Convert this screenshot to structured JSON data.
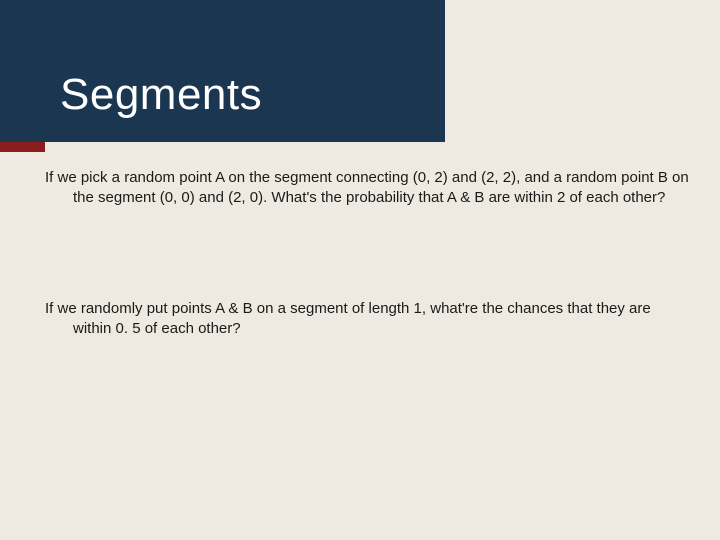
{
  "slide": {
    "background_color": "#eeeae1",
    "title_block": {
      "bg_color": "#1b3650",
      "accent_color": "#8a1e1e",
      "title": "Segments",
      "title_color": "#ffffff",
      "title_fontsize": 44
    },
    "body": {
      "text_color": "#1a1a1a",
      "fontsize": 15,
      "paragraphs": [
        "If we pick a random point A on the segment connecting (0, 2) and (2, 2), and a random point B on the segment (0, 0) and (2, 0). What's the probability that A & B are within 2 of each other?",
        "If we randomly put points A & B on a segment of length 1, what're the chances that they are within 0. 5 of each other?"
      ]
    }
  }
}
